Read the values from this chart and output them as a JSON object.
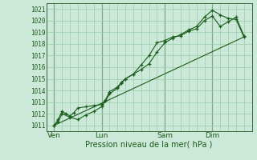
{
  "title": "",
  "xlabel": "Pression niveau de la mer( hPa )",
  "background_color": "#cce8d8",
  "grid_color": "#99ccaa",
  "line_color": "#1a5c1a",
  "vline_color": "#336633",
  "ylim": [
    1010.5,
    1021.5
  ],
  "xlim": [
    0,
    26
  ],
  "x_ticks_labels": [
    "Ven",
    "Lun",
    "Sam",
    "Dim"
  ],
  "x_ticks_pos": [
    1,
    7,
    15,
    21
  ],
  "x_minor_step": 1,
  "line1_x": [
    1,
    1.5,
    2,
    2.5,
    3,
    3.5,
    4,
    5,
    6,
    7,
    7.5,
    8,
    9,
    9.5,
    10,
    11,
    12,
    13,
    14,
    15,
    16,
    17,
    18,
    19,
    20,
    21,
    22,
    23,
    24,
    25
  ],
  "line1_y": [
    1011.0,
    1011.5,
    1012.2,
    1012.0,
    1011.8,
    1012.1,
    1012.5,
    1012.6,
    1012.7,
    1012.8,
    1013.2,
    1013.9,
    1014.3,
    1014.7,
    1015.0,
    1015.4,
    1016.2,
    1017.0,
    1018.1,
    1018.3,
    1018.6,
    1018.7,
    1019.1,
    1019.3,
    1020.0,
    1020.4,
    1019.5,
    1019.9,
    1020.3,
    1018.7
  ],
  "line2_x": [
    1,
    1.5,
    2,
    3,
    4,
    5,
    6,
    7,
    7.5,
    8,
    9,
    9.5,
    10,
    11,
    12,
    13,
    14,
    15,
    16,
    17,
    18,
    19,
    20,
    21,
    22,
    23,
    24,
    25
  ],
  "line2_y": [
    1011.0,
    1011.3,
    1012.0,
    1011.7,
    1011.5,
    1011.9,
    1012.2,
    1012.6,
    1013.1,
    1013.7,
    1014.2,
    1014.6,
    1015.0,
    1015.4,
    1015.8,
    1016.3,
    1017.3,
    1018.1,
    1018.5,
    1018.8,
    1019.2,
    1019.5,
    1020.3,
    1020.9,
    1020.5,
    1020.2,
    1020.1,
    1018.6
  ],
  "line3_x": [
    1,
    25
  ],
  "line3_y": [
    1011.0,
    1018.6
  ],
  "xlabel_fontsize": 7,
  "ytick_fontsize": 5.5,
  "xtick_fontsize": 6.5
}
